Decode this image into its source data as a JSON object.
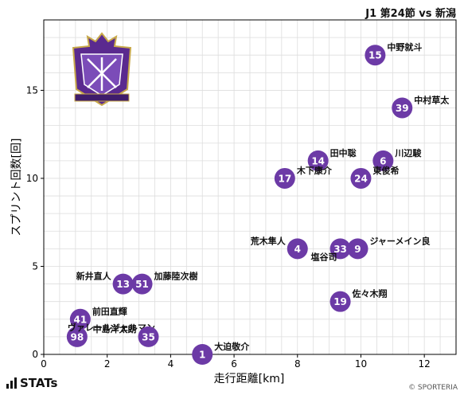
{
  "header": {
    "title": "J1 第24節 vs 新潟"
  },
  "footer": {
    "brand": "STATs",
    "copyright": "© SPORTERIA"
  },
  "colors": {
    "marker": "#6c3aa6",
    "marker_text": "#ffffff",
    "grid": "#dddddd",
    "axis": "#000000",
    "crest_purple": "#5a2a8f"
  },
  "crest": {
    "icon": "sanfrecce-crest-icon",
    "text": "SANFRECCE HIROSHIMA"
  },
  "chart_data": {
    "type": "scatter",
    "xlabel": "走行距離[km]",
    "ylabel": "スプリント回数[回]",
    "xlim": [
      0,
      13
    ],
    "ylim": [
      0,
      19
    ],
    "xticks": [
      0,
      2,
      4,
      6,
      8,
      10,
      12
    ],
    "yticks": [
      0,
      5,
      10,
      15
    ],
    "grid": true,
    "points": [
      {
        "number": "15",
        "name": "中野就斗",
        "x": 10.45,
        "y": 17.0,
        "label_pos": "right"
      },
      {
        "number": "39",
        "name": "中村草太",
        "x": 11.3,
        "y": 14.0,
        "label_pos": "right"
      },
      {
        "number": "14",
        "name": "田中聡",
        "x": 8.65,
        "y": 11.0,
        "label_pos": "right"
      },
      {
        "number": "6",
        "name": "川辺駿",
        "x": 10.7,
        "y": 11.0,
        "label_pos": "right"
      },
      {
        "number": "17",
        "name": "木下康介",
        "x": 7.6,
        "y": 10.0,
        "label_pos": "right"
      },
      {
        "number": "24",
        "name": "東俊希",
        "x": 10.0,
        "y": 10.0,
        "label_pos": "right"
      },
      {
        "number": "4",
        "name": "荒木隼人",
        "x": 8.0,
        "y": 6.0,
        "label_pos": "left"
      },
      {
        "number": "33",
        "name": "塩谷司",
        "x": 9.35,
        "y": 6.0,
        "label_pos": "below-left"
      },
      {
        "number": "9",
        "name": "ジャーメイン良",
        "x": 9.9,
        "y": 6.0,
        "label_pos": "right"
      },
      {
        "number": "13",
        "name": "新井直人",
        "x": 2.5,
        "y": 4.0,
        "label_pos": "left"
      },
      {
        "number": "51",
        "name": "加藤陸次樹",
        "x": 3.1,
        "y": 4.0,
        "label_pos": "right"
      },
      {
        "number": "19",
        "name": "佐々木翔",
        "x": 9.35,
        "y": 3.0,
        "label_pos": "right"
      },
      {
        "number": "41",
        "name": "前田直輝",
        "x": 1.15,
        "y": 2.0,
        "label_pos": "right"
      },
      {
        "number": "98",
        "name": "ヴァレールジェルマン",
        "x": 1.05,
        "y": 1.0,
        "label_pos": "above-right"
      },
      {
        "number": "35",
        "name": "中島洋太朗",
        "x": 3.3,
        "y": 1.0,
        "label_pos": "left"
      },
      {
        "number": "1",
        "name": "大迫敬介",
        "x": 5.0,
        "y": 0.0,
        "label_pos": "right"
      }
    ]
  }
}
